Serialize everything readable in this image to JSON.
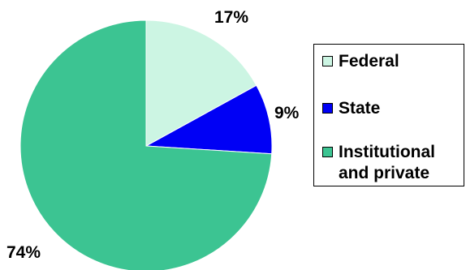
{
  "chart_data": {
    "type": "pie",
    "title": "",
    "slices": [
      {
        "label": "Federal",
        "value": 17,
        "value_label": "17%",
        "color": "#ccf5e3"
      },
      {
        "label": "State",
        "value": 9,
        "value_label": "9%",
        "color": "#0000f5"
      },
      {
        "label": "Institutional and private",
        "label_lines": [
          "Institutional",
          "and private"
        ],
        "value": 74,
        "value_label": "74%",
        "color": "#3cc492"
      }
    ],
    "start": "12 o'clock",
    "direction": "clockwise",
    "legend": {
      "placement": "right",
      "bordered": true
    },
    "slice_border_color": "#ffffff"
  }
}
